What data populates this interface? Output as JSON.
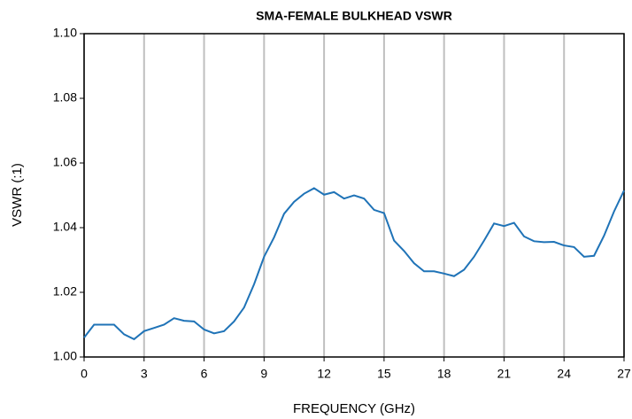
{
  "chart_data": {
    "type": "line",
    "title": "SMA-FEMALE BULKHEAD VSWR",
    "x_label": "FREQUENCY (GHz)",
    "y_label": "VSWR (:1)",
    "x": [
      0,
      0.5,
      1,
      1.5,
      2,
      2.5,
      3,
      3.5,
      4,
      4.5,
      5,
      5.5,
      6,
      6.5,
      7,
      7.5,
      8,
      8.5,
      9,
      9.5,
      10,
      10.5,
      11,
      11.5,
      12,
      12.5,
      13,
      13.5,
      14,
      14.5,
      15,
      15.5,
      16,
      16.5,
      17,
      17.5,
      18,
      18.5,
      19,
      19.5,
      20,
      20.5,
      21,
      21.5,
      22,
      22.5,
      23,
      23.5,
      24,
      24.5,
      25,
      25.5,
      26,
      26.5,
      27
    ],
    "series": [
      {
        "color": "#1f73b7",
        "values": [
          1.006,
          1.01,
          1.01,
          1.01,
          1.007,
          1.0055,
          1.008,
          1.009,
          1.01,
          1.012,
          1.0112,
          1.011,
          1.0085,
          1.0073,
          1.008,
          1.011,
          1.0153,
          1.0225,
          1.031,
          1.037,
          1.0443,
          1.048,
          1.0505,
          1.0522,
          1.0502,
          1.051,
          1.049,
          1.05,
          1.049,
          1.0455,
          1.0445,
          1.036,
          1.0328,
          1.029,
          1.0265,
          1.0265,
          1.0258,
          1.025,
          1.027,
          1.031,
          1.036,
          1.0413,
          1.0405,
          1.0415,
          1.0373,
          1.0358,
          1.0355,
          1.0356,
          1.0345,
          1.034,
          1.031,
          1.0313,
          1.0375,
          1.045,
          1.0515
        ]
      }
    ],
    "xlim": [
      0,
      27
    ],
    "xticks": [
      0,
      3,
      6,
      9,
      12,
      15,
      18,
      21,
      24,
      27
    ],
    "ylim": [
      1.0,
      1.1
    ],
    "yticks": [
      {
        "value": 1.0,
        "label": "1.00"
      },
      1.02,
      1.04,
      1.06,
      1.08,
      {
        "value": 1.1,
        "label": "1.10"
      }
    ],
    "grid": "x"
  }
}
